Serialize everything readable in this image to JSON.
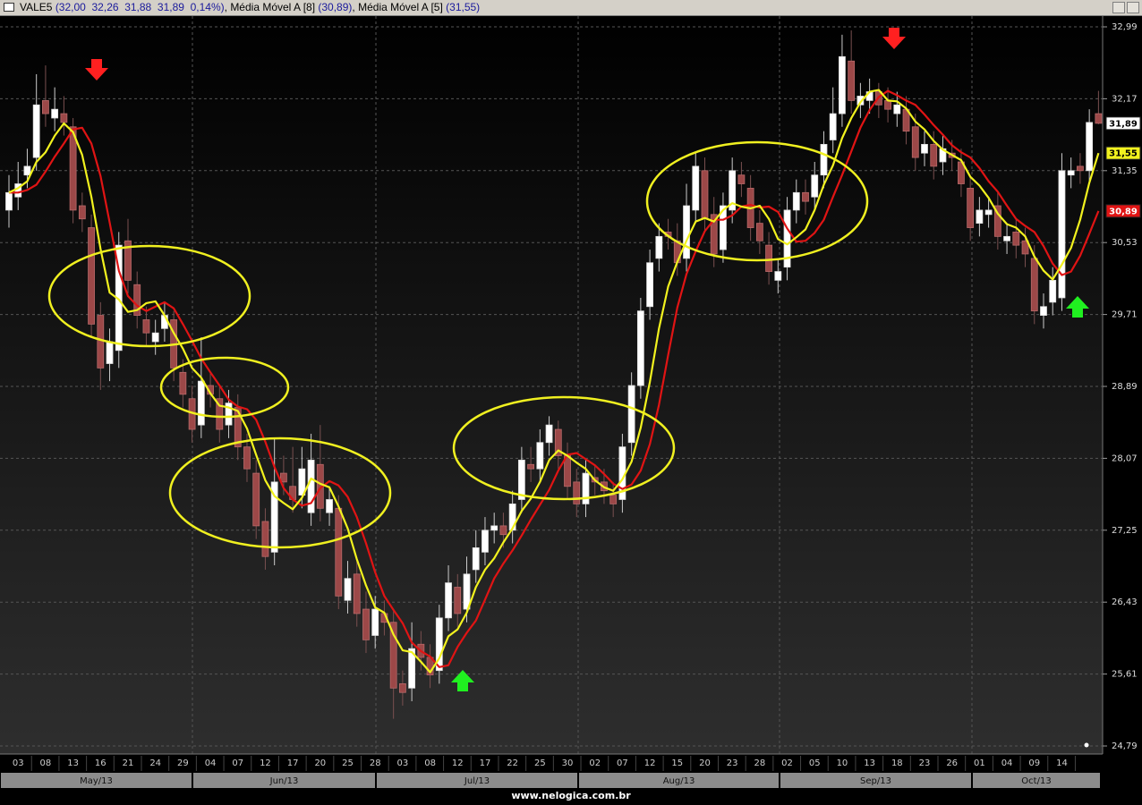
{
  "chart_data": {
    "type": "candlestick",
    "symbol": "VALE5",
    "quote_label": "(32,00  32,26  31,88  31,89  0,14%)",
    "header_separator": ",",
    "last_label": "31,89",
    "footer": "www.nelogica.com.br",
    "ylim": [
      24.79,
      32.99
    ],
    "yticks": [
      {
        "value": 24.79,
        "label": "24,79"
      },
      {
        "value": 25.61,
        "label": "25,61"
      },
      {
        "value": 26.43,
        "label": "26,43"
      },
      {
        "value": 27.25,
        "label": "27,25"
      },
      {
        "value": 28.07,
        "label": "28,07"
      },
      {
        "value": 28.89,
        "label": "28,89"
      },
      {
        "value": 29.71,
        "label": "29,71"
      },
      {
        "value": 30.53,
        "label": "30,53"
      },
      {
        "value": 31.35,
        "label": "31,35"
      },
      {
        "value": 32.17,
        "label": "32,17"
      },
      {
        "value": 32.99,
        "label": "32,99"
      }
    ],
    "grid": true,
    "up_color": "#ffffff",
    "down_color": "#9c4848",
    "months": [
      "May/13",
      "Jun/13",
      "Jul/13",
      "Aug/13",
      "Sep/13",
      "Oct/13"
    ],
    "categories": [
      null,
      "03",
      null,
      null,
      "08",
      null,
      null,
      "13",
      null,
      null,
      "16",
      null,
      null,
      "21",
      null,
      null,
      "24",
      null,
      null,
      "29",
      null,
      null,
      "04",
      null,
      null,
      "07",
      null,
      null,
      "12",
      null,
      null,
      "17",
      null,
      null,
      "20",
      null,
      null,
      "25",
      null,
      null,
      "28",
      null,
      null,
      "03",
      null,
      null,
      "08",
      null,
      null,
      "12",
      null,
      null,
      "17",
      null,
      null,
      "22",
      null,
      null,
      "25",
      null,
      null,
      "30",
      null,
      null,
      "02",
      null,
      null,
      "07",
      null,
      null,
      "12",
      null,
      null,
      "15",
      null,
      null,
      "20",
      null,
      null,
      "23",
      null,
      null,
      "28",
      null,
      null,
      "02",
      null,
      null,
      "05",
      null,
      null,
      "10",
      null,
      null,
      "13",
      null,
      null,
      "18",
      null,
      null,
      "23",
      null,
      null,
      "26",
      null,
      null,
      "01",
      null,
      null,
      "04",
      null,
      null,
      "09",
      null,
      null,
      "14",
      null,
      null,
      null,
      null
    ],
    "open": [
      30.9,
      31.05,
      31.3,
      31.5,
      32.15,
      31.95,
      32.0,
      31.85,
      30.95,
      30.7,
      29.7,
      29.15,
      29.3,
      30.55,
      30.05,
      29.65,
      29.4,
      29.55,
      29.65,
      29.05,
      28.75,
      28.45,
      28.9,
      28.75,
      28.45,
      28.65,
      28.2,
      27.9,
      27.35,
      27.0,
      27.9,
      27.75,
      27.65,
      27.45,
      28.0,
      27.45,
      27.5,
      26.45,
      26.75,
      26.35,
      26.05,
      26.3,
      26.2,
      25.5,
      25.45,
      25.95,
      25.8,
      25.65,
      26.25,
      26.6,
      26.35,
      26.8,
      27.0,
      27.25,
      27.3,
      27.25,
      27.6,
      28.0,
      27.95,
      28.25,
      28.4,
      28.1,
      27.8,
      27.55,
      27.85,
      27.8,
      27.65,
      27.6,
      28.25,
      28.9,
      29.8,
      30.35,
      30.65,
      30.55,
      30.35,
      30.9,
      31.35,
      30.85,
      30.45,
      30.9,
      31.3,
      31.15,
      30.75,
      30.5,
      30.1,
      30.25,
      30.9,
      31.1,
      31.05,
      31.3,
      31.7,
      32.0,
      32.6,
      32.1,
      32.15,
      32.25,
      32.15,
      32.0,
      32.05,
      31.85,
      31.55,
      31.65,
      31.45,
      31.55,
      31.45,
      31.15,
      30.75,
      30.85,
      30.95,
      30.55,
      30.65,
      30.55,
      30.35,
      29.7,
      29.85,
      29.9,
      31.3,
      31.4,
      31.35,
      32.0
    ],
    "high": [
      31.3,
      31.45,
      31.6,
      32.45,
      32.55,
      32.3,
      32.2,
      31.95,
      31.1,
      30.85,
      29.85,
      29.55,
      30.65,
      30.8,
      30.2,
      29.8,
      29.65,
      29.85,
      29.75,
      29.2,
      28.9,
      29.45,
      29.05,
      28.9,
      28.85,
      28.8,
      28.35,
      28.05,
      27.5,
      28.3,
      28.1,
      28.2,
      28.2,
      28.35,
      28.45,
      27.75,
      27.65,
      26.9,
      26.9,
      26.55,
      26.5,
      26.45,
      26.35,
      25.65,
      26.2,
      26.1,
      25.95,
      26.4,
      26.85,
      26.75,
      26.95,
      27.25,
      27.4,
      27.45,
      27.45,
      27.7,
      28.2,
      28.2,
      28.4,
      28.55,
      28.5,
      28.25,
      27.95,
      28.05,
      28.0,
      27.95,
      27.8,
      28.35,
      29.05,
      29.9,
      30.45,
      30.75,
      30.8,
      30.75,
      31.2,
      31.55,
      31.5,
      31.05,
      31.1,
      31.5,
      31.45,
      31.3,
      30.9,
      30.65,
      30.35,
      31.05,
      31.25,
      31.25,
      31.45,
      31.8,
      32.3,
      32.9,
      32.95,
      32.35,
      32.4,
      32.35,
      32.3,
      32.25,
      32.2,
      32.0,
      31.8,
      31.8,
      31.75,
      31.7,
      31.6,
      31.3,
      31.05,
      31.05,
      31.1,
      30.75,
      30.8,
      30.7,
      30.5,
      29.95,
      30.25,
      31.55,
      31.5,
      31.55,
      32.05,
      32.26
    ],
    "low": [
      30.7,
      30.9,
      31.15,
      31.35,
      31.85,
      31.8,
      31.75,
      30.75,
      30.65,
      29.45,
      28.85,
      28.95,
      29.1,
      29.95,
      29.55,
      29.35,
      29.25,
      29.4,
      28.95,
      28.65,
      28.25,
      28.3,
      28.65,
      28.25,
      28.3,
      28.05,
      27.8,
      27.15,
      26.8,
      26.85,
      27.65,
      27.45,
      27.5,
      27.3,
      27.35,
      27.3,
      26.35,
      26.3,
      26.15,
      25.85,
      25.9,
      26.05,
      25.1,
      25.25,
      25.3,
      25.65,
      25.45,
      25.5,
      26.1,
      26.15,
      26.2,
      26.65,
      26.85,
      27.1,
      27.05,
      27.1,
      27.45,
      27.8,
      27.8,
      28.1,
      27.95,
      27.6,
      27.4,
      27.4,
      27.65,
      27.55,
      27.4,
      27.45,
      28.1,
      28.75,
      29.65,
      30.2,
      30.45,
      30.15,
      30.2,
      30.75,
      30.65,
      30.25,
      30.3,
      30.75,
      31.05,
      30.55,
      30.4,
      30.05,
      29.95,
      30.1,
      30.75,
      30.85,
      30.9,
      31.15,
      31.55,
      31.85,
      32.0,
      31.95,
      32.0,
      31.95,
      31.9,
      31.85,
      31.65,
      31.35,
      31.4,
      31.25,
      31.3,
      31.35,
      31.05,
      30.55,
      30.6,
      30.7,
      30.45,
      30.4,
      30.35,
      30.25,
      29.6,
      29.55,
      29.7,
      29.75,
      31.15,
      31.2,
      31.2,
      31.88
    ],
    "close": [
      31.1,
      31.2,
      31.4,
      32.1,
      32.0,
      32.05,
      31.9,
      30.9,
      30.8,
      29.6,
      29.1,
      29.4,
      30.5,
      30.1,
      29.7,
      29.5,
      29.5,
      29.7,
      29.1,
      28.8,
      28.4,
      28.95,
      28.8,
      28.4,
      28.7,
      28.2,
      27.95,
      27.3,
      26.95,
      27.8,
      27.8,
      27.6,
      27.95,
      28.05,
      27.5,
      27.6,
      26.5,
      26.7,
      26.3,
      26.0,
      26.35,
      26.2,
      25.45,
      25.4,
      25.9,
      25.8,
      25.6,
      26.25,
      26.65,
      26.3,
      26.75,
      27.05,
      27.25,
      27.3,
      27.2,
      27.55,
      28.05,
      27.95,
      28.25,
      28.45,
      28.1,
      27.75,
      27.55,
      27.9,
      27.8,
      27.7,
      27.55,
      28.2,
      28.9,
      29.75,
      30.3,
      30.6,
      30.6,
      30.3,
      30.95,
      31.4,
      30.8,
      30.4,
      30.95,
      31.35,
      31.2,
      30.7,
      30.55,
      30.2,
      30.2,
      30.9,
      31.1,
      31.0,
      31.3,
      31.65,
      32.0,
      32.65,
      32.15,
      32.2,
      32.25,
      32.1,
      32.05,
      32.1,
      31.8,
      31.5,
      31.65,
      31.4,
      31.6,
      31.5,
      31.2,
      30.7,
      30.9,
      30.9,
      30.6,
      30.6,
      30.5,
      30.4,
      29.75,
      29.8,
      30.1,
      31.35,
      31.35,
      31.35,
      31.9,
      31.89
    ],
    "series": [
      {
        "name": "Média Móvel A [8]",
        "color": "#e01414",
        "text_color": "#ffffff",
        "last_label": "30,89",
        "header_label": "(30,89)",
        "values": [
          31.1,
          31.1,
          31.13,
          31.19,
          31.34,
          31.51,
          31.66,
          31.82,
          31.84,
          31.66,
          31.29,
          30.76,
          30.21,
          29.92,
          29.81,
          29.75,
          29.8,
          29.85,
          29.78,
          29.6,
          29.41,
          29.21,
          29.05,
          28.9,
          28.74,
          28.66,
          28.63,
          28.51,
          28.26,
          27.97,
          27.73,
          27.6,
          27.53,
          27.56,
          27.73,
          27.81,
          27.76,
          27.63,
          27.4,
          27.1,
          26.77,
          26.5,
          26.34,
          26.19,
          25.97,
          25.87,
          25.81,
          25.69,
          25.71,
          25.92,
          26.08,
          26.22,
          26.46,
          26.7,
          26.87,
          27.02,
          27.19,
          27.37,
          27.54,
          27.71,
          27.93,
          28.11,
          28.13,
          28.06,
          27.99,
          27.89,
          27.78,
          27.72,
          27.77,
          27.93,
          28.23,
          28.68,
          29.25,
          29.79,
          30.17,
          30.43,
          30.66,
          30.79,
          30.79,
          30.84,
          30.94,
          30.96,
          30.93,
          30.94,
          30.88,
          30.69,
          30.54,
          30.55,
          30.64,
          30.79,
          31.05,
          31.3,
          31.57,
          31.84,
          32.04,
          32.19,
          32.26,
          32.21,
          32.15,
          32.1,
          31.99,
          31.87,
          31.76,
          31.64,
          31.56,
          31.5,
          31.38,
          31.23,
          31.11,
          30.95,
          30.8,
          30.72,
          30.65,
          30.49,
          30.29,
          30.16,
          30.2,
          30.38,
          30.63,
          30.89
        ]
      },
      {
        "name": "Média Móvel A [5]",
        "color": "#f2f21e",
        "text_color": "#000000",
        "last_label": "31,55",
        "header_label": "(31,55)",
        "values": [
          31.1,
          31.15,
          31.23,
          31.45,
          31.56,
          31.75,
          31.89,
          31.79,
          31.53,
          31.05,
          30.46,
          29.96,
          29.88,
          29.74,
          29.76,
          29.84,
          29.86,
          29.7,
          29.5,
          29.32,
          29.1,
          28.99,
          28.81,
          28.67,
          28.65,
          28.61,
          28.41,
          28.11,
          27.82,
          27.64,
          27.56,
          27.49,
          27.62,
          27.84,
          27.78,
          27.74,
          27.52,
          27.27,
          26.92,
          26.62,
          26.37,
          26.31,
          26.06,
          25.88,
          25.86,
          25.75,
          25.63,
          25.79,
          26.04,
          26.12,
          26.31,
          26.6,
          26.8,
          26.93,
          27.11,
          27.27,
          27.47,
          27.61,
          27.8,
          28.05,
          28.16,
          28.1,
          28.02,
          27.95,
          27.82,
          27.74,
          27.7,
          27.83,
          28.03,
          28.42,
          28.94,
          29.55,
          30.03,
          30.31,
          30.55,
          30.77,
          30.81,
          30.77,
          30.9,
          30.98,
          30.94,
          30.92,
          30.95,
          30.8,
          30.57,
          30.51,
          30.59,
          30.68,
          30.9,
          31.19,
          31.41,
          31.72,
          31.95,
          32.13,
          32.25,
          32.27,
          32.15,
          32.14,
          32.06,
          31.91,
          31.82,
          31.69,
          31.59,
          31.53,
          31.47,
          31.28,
          31.18,
          31.04,
          30.86,
          30.74,
          30.7,
          30.6,
          30.37,
          30.21,
          30.11,
          30.28,
          30.47,
          30.79,
          31.21,
          31.55
        ]
      }
    ]
  }
}
